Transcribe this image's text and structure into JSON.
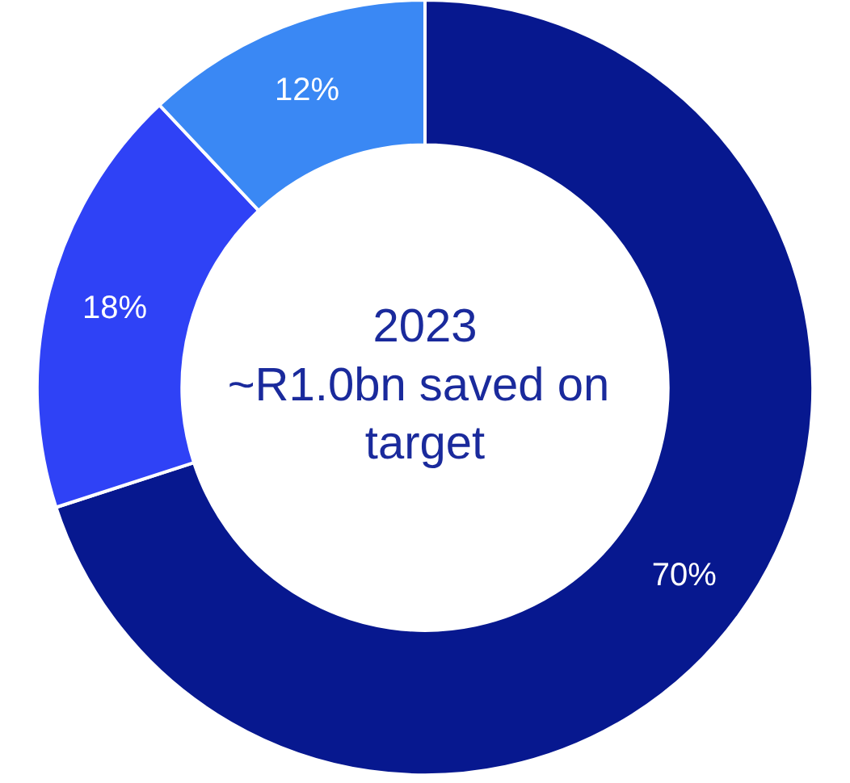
{
  "chart_data": {
    "type": "donut",
    "title": "2023",
    "subtitle": "~R1.0bn saved on target",
    "categories": [
      null,
      null,
      null
    ],
    "values": [
      70,
      18,
      12
    ],
    "colors": [
      "#07188f",
      "#2f42f6",
      "#3a88f4"
    ],
    "value_labels": [
      "70%",
      "18%",
      "12%"
    ]
  }
}
